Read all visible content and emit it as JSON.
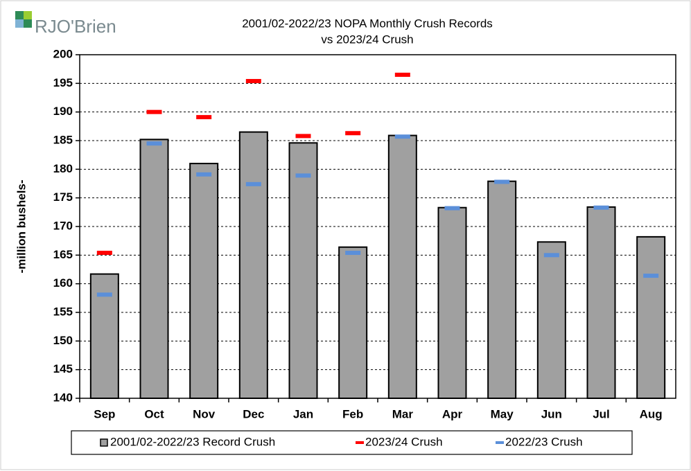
{
  "logo": "RJO'Brien",
  "chart_data": {
    "type": "bar",
    "title_lines": [
      "2001/02-2022/23 NOPA Monthly Crush Records",
      "vs 2023/24 Crush"
    ],
    "y_label": "-million bushels-",
    "categories": [
      "Sep",
      "Oct",
      "Nov",
      "Dec",
      "Jan",
      "Feb",
      "Mar",
      "Apr",
      "May",
      "Jun",
      "Jul",
      "Aug"
    ],
    "series": [
      {
        "name": "2001/02-2022/23 Record Crush",
        "color": "#a0a0a0",
        "marker": "bar",
        "values": [
          161.7,
          185.2,
          181.0,
          186.5,
          184.6,
          166.4,
          185.9,
          173.3,
          177.9,
          167.3,
          173.4,
          168.2
        ]
      },
      {
        "name": "2023/24 Crush",
        "color": "#ff0000",
        "marker": "dash",
        "values": [
          165.4,
          190.0,
          189.1,
          195.4,
          185.8,
          186.3,
          196.5,
          null,
          null,
          null,
          null,
          null
        ]
      },
      {
        "name": "2022/23 Crush",
        "color": "#5b8fd9",
        "marker": "dash",
        "values": [
          158.1,
          184.5,
          179.1,
          177.4,
          178.9,
          165.4,
          185.7,
          173.2,
          177.8,
          165.0,
          173.3,
          161.4
        ]
      }
    ],
    "ylim": [
      140,
      200
    ],
    "yticks": [
      140,
      145,
      150,
      155,
      160,
      165,
      170,
      175,
      180,
      185,
      190,
      195,
      200
    ],
    "grid": true
  }
}
